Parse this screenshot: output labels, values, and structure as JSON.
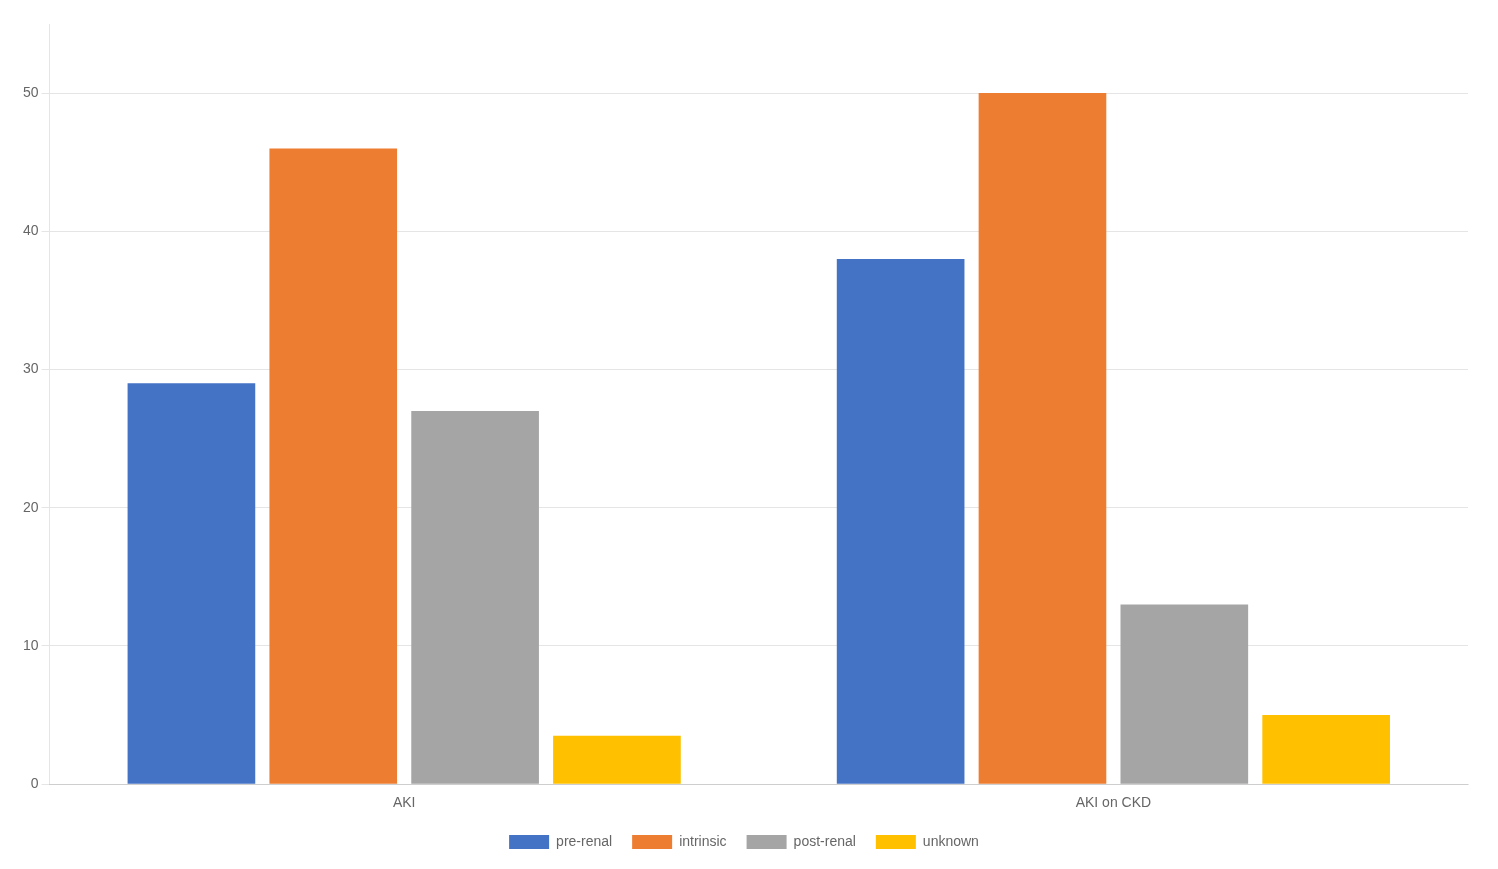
{
  "chart_data": {
    "type": "bar",
    "categories": [
      "AKI",
      "AKI on CKD"
    ],
    "series": [
      {
        "name": "pre-renal",
        "color": "#4472C4",
        "values": [
          29,
          38
        ]
      },
      {
        "name": "intrinsic",
        "color": "#ED7D31",
        "values": [
          46,
          50
        ]
      },
      {
        "name": "post-renal",
        "color": "#A5A5A5",
        "values": [
          27,
          13
        ]
      },
      {
        "name": "unknown",
        "color": "#FFC000",
        "values": [
          3.5,
          5
        ]
      }
    ],
    "ylim": [
      0,
      55
    ],
    "yticks": [
      0,
      10,
      20,
      30,
      40,
      50
    ],
    "grid": true,
    "legend": "bottom"
  }
}
